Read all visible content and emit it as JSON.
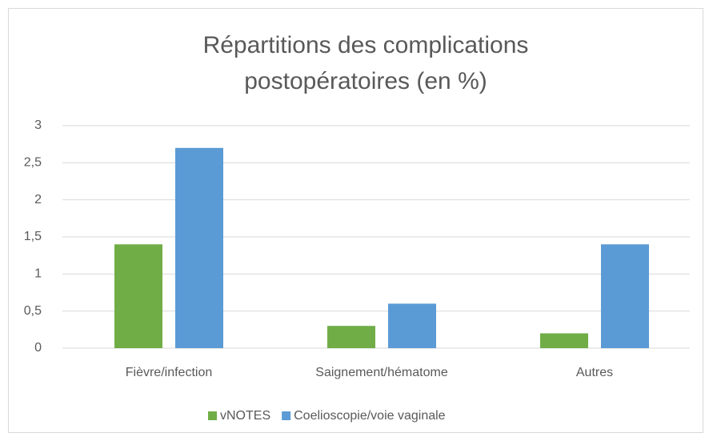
{
  "chart_data": {
    "type": "bar",
    "title": [
      "Répartitions des complications",
      "postopératoires (en  %)"
    ],
    "categories": [
      "Fièvre/infection",
      "Saignement/hématome",
      "Autres"
    ],
    "series": [
      {
        "name": "vNOTES",
        "color": "#70ad47",
        "values": [
          1.4,
          0.3,
          0.2
        ]
      },
      {
        "name": "Coelioscopie/voie vaginale",
        "color": "#5b9bd5",
        "values": [
          2.7,
          0.6,
          1.4
        ]
      }
    ],
    "ylim": [
      0,
      3
    ],
    "yticks": [
      0,
      {
        "value": 0.5,
        "label": "0,5"
      },
      1,
      {
        "value": 1.5,
        "label": "1,5"
      },
      2,
      {
        "value": 2.5,
        "label": "2,5"
      },
      3
    ],
    "grid": true,
    "legend": "bottom"
  }
}
